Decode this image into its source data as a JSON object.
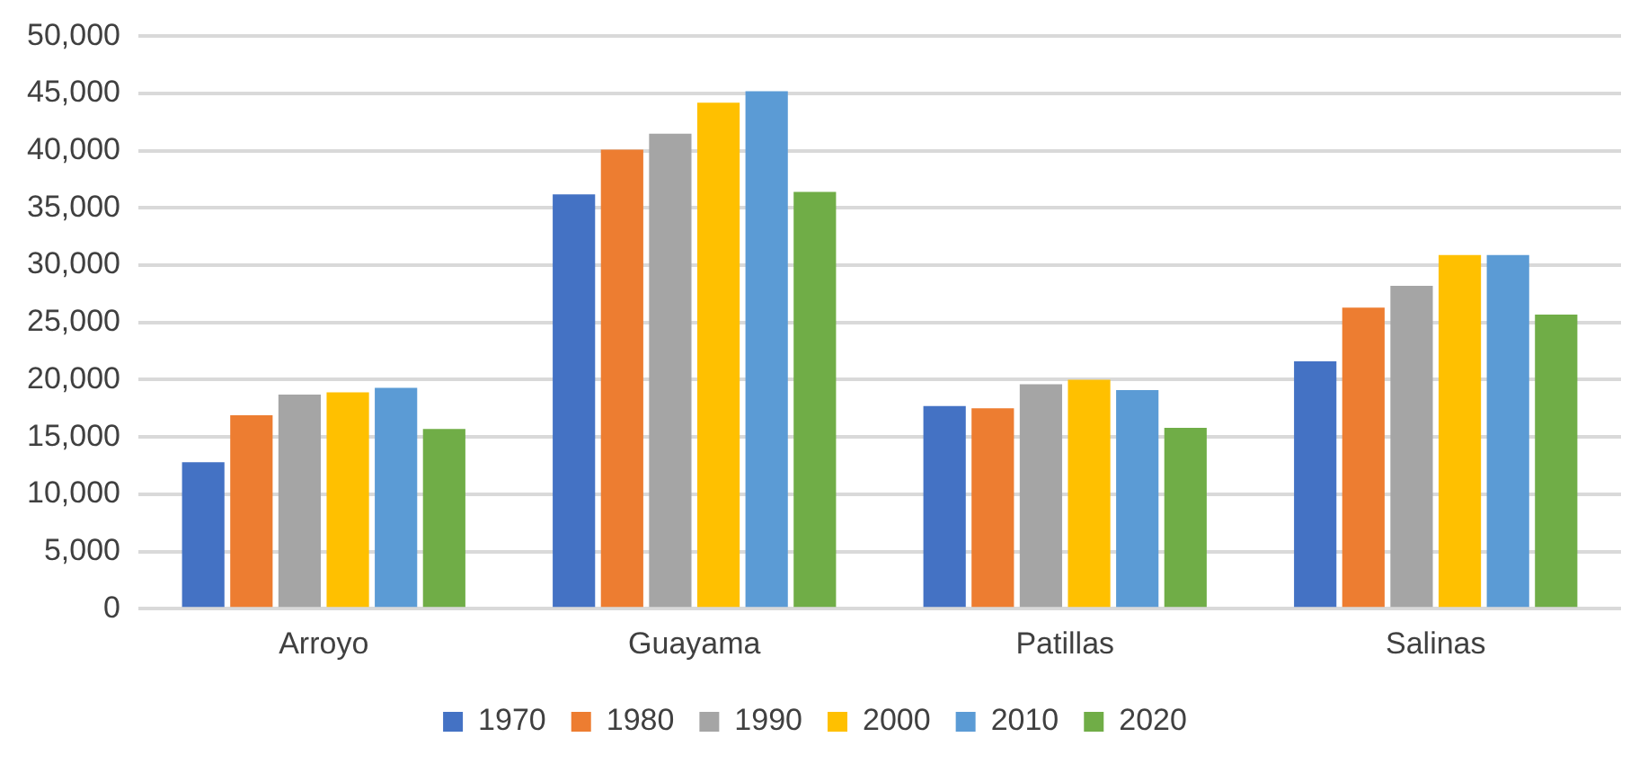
{
  "chart_data": {
    "type": "bar",
    "categories": [
      "Arroyo",
      "Guayama",
      "Patillas",
      "Salinas"
    ],
    "series": [
      {
        "name": "1970",
        "color": "#4472c4",
        "values": [
          12800,
          36200,
          17700,
          21600
        ]
      },
      {
        "name": "1980",
        "color": "#ed7d31",
        "values": [
          16900,
          40100,
          17500,
          26300
        ]
      },
      {
        "name": "1990",
        "color": "#a5a5a5",
        "values": [
          18700,
          41500,
          19600,
          28200
        ]
      },
      {
        "name": "2000",
        "color": "#ffc000",
        "values": [
          18900,
          44200,
          20000,
          30900
        ]
      },
      {
        "name": "2010",
        "color": "#5b9bd5",
        "values": [
          19300,
          45200,
          19100,
          30900
        ]
      },
      {
        "name": "2020",
        "color": "#70ad47",
        "values": [
          15700,
          36400,
          15800,
          25700
        ]
      }
    ],
    "ylim": [
      0,
      50000
    ],
    "yticks": [
      {
        "value": 0,
        "label": "0"
      },
      {
        "value": 5000,
        "label": "5,000"
      },
      {
        "value": 10000,
        "label": "10,000"
      },
      {
        "value": 15000,
        "label": "15,000"
      },
      {
        "value": 20000,
        "label": "20,000"
      },
      {
        "value": 25000,
        "label": "25,000"
      },
      {
        "value": 30000,
        "label": "30,000"
      },
      {
        "value": 35000,
        "label": "35,000"
      },
      {
        "value": 40000,
        "label": "40,000"
      },
      {
        "value": 45000,
        "label": "45,000"
      },
      {
        "value": 50000,
        "label": "50,000"
      }
    ],
    "grid": "y",
    "legend": "bottom"
  }
}
